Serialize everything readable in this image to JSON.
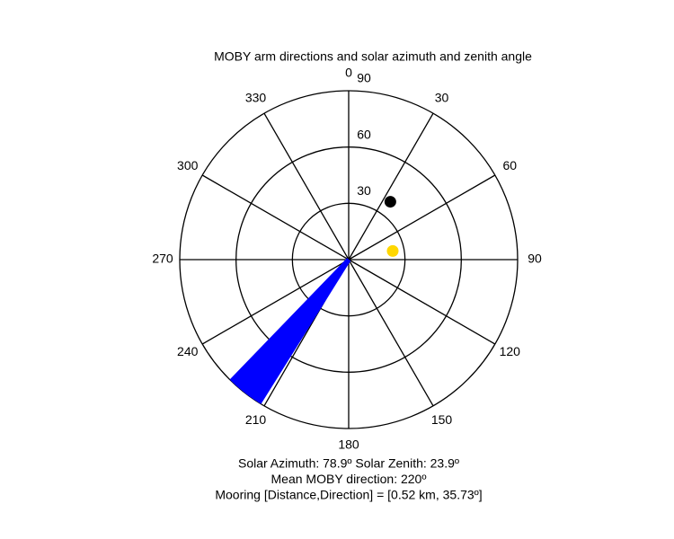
{
  "chart_data": {
    "type": "polar",
    "title": "MOBY arm directions and solar azimuth and zenith angle",
    "rlim": [
      0,
      90
    ],
    "rticks": [
      30,
      60,
      90
    ],
    "thetaticks": [
      0,
      30,
      60,
      90,
      120,
      150,
      180,
      210,
      240,
      270,
      300,
      330
    ],
    "series": [
      {
        "color": "#0000ff",
        "style": "line",
        "theta": [
          212,
          213,
          214,
          215,
          216,
          217,
          218,
          219,
          220,
          221,
          222,
          223,
          224
        ],
        "r": [
          90,
          90,
          90,
          90,
          90,
          90,
          90,
          90,
          90,
          90,
          90,
          90,
          90
        ]
      },
      {
        "color": "#000000",
        "style": "marker",
        "theta": [
          35.73
        ],
        "r": [
          38
        ]
      },
      {
        "color": "#ffd700",
        "style": "marker",
        "theta": [
          78.9
        ],
        "r": [
          23.9
        ]
      }
    ],
    "annotations": [
      "Solar Azimuth: 78.9º    Solar Zenith: 23.9º",
      "Mean MOBY direction: 220º",
      "Mooring [Distance,Direction] = [0.52 km, 35.73º]"
    ]
  }
}
